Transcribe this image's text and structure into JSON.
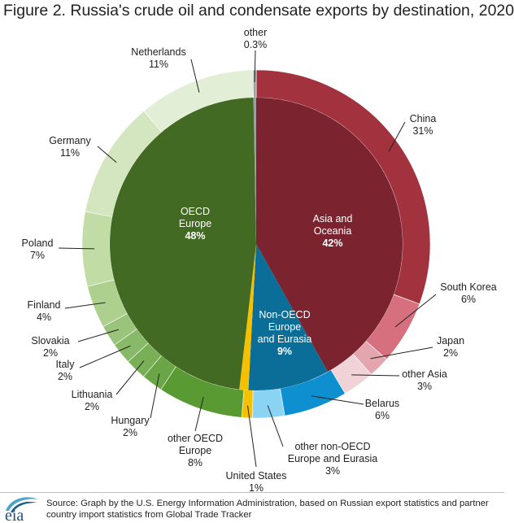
{
  "title": "Figure 2. Russia's crude oil and condensate exports by destination, 2020",
  "source": "Source: Graph by the U.S. Energy Information Administration, based on Russian export statistics and partner country import statistics from Global Trade Tracker",
  "logo_text": "eia",
  "colors": {
    "asia_inner": "#7b2430",
    "oecd_inner": "#436a23",
    "nonoecd_inner": "#0a6e98",
    "us": "#f5c000",
    "other": "#9e9e9e"
  },
  "chart_data": {
    "type": "pie",
    "subtype": "nested-donut",
    "title": "Figure 2. Russia's crude oil and condensate exports by destination, 2020",
    "unit": "percent of exports",
    "inner": [
      {
        "name": "Asia and Oceania",
        "lines": [
          "Asia and",
          "Oceania"
        ],
        "pct_label": "42%",
        "value": 42,
        "color": "#7b2430"
      },
      {
        "name": "Non-OECD Europe and Eurasia",
        "lines": [
          "Non-OECD",
          "Europe",
          "and Eurasia"
        ],
        "pct_label": "9%",
        "value": 9,
        "color": "#0a6e98"
      },
      {
        "name": "United States",
        "lines": [],
        "pct_label": "",
        "value": 1,
        "color": "#f5c000"
      },
      {
        "name": "OECD Europe",
        "lines": [
          "OECD",
          "Europe"
        ],
        "pct_label": "48%",
        "value": 48,
        "color": "#436a23"
      },
      {
        "name": "other",
        "lines": [],
        "pct_label": "",
        "value": 0.3,
        "color": "#9e9e9e"
      }
    ],
    "outer": [
      {
        "name": "China",
        "lines": [
          "China"
        ],
        "pct_label": "31%",
        "value": 31,
        "color": "#a3323f"
      },
      {
        "name": "South Korea",
        "lines": [
          "South Korea"
        ],
        "pct_label": "6%",
        "value": 6,
        "color": "#d6707e"
      },
      {
        "name": "Japan",
        "lines": [
          "Japan"
        ],
        "pct_label": "2%",
        "value": 2,
        "color": "#e3a6ae"
      },
      {
        "name": "other Asia",
        "lines": [
          "other Asia"
        ],
        "pct_label": "3%",
        "value": 3,
        "color": "#f0d3d7"
      },
      {
        "name": "Belarus",
        "lines": [
          "Belarus"
        ],
        "pct_label": "6%",
        "value": 6,
        "color": "#0d8fd0"
      },
      {
        "name": "other non-OECD Europe and Eurasia",
        "lines": [
          "other non-OECD",
          "Europe and Eurasia"
        ],
        "pct_label": "3%",
        "value": 3,
        "color": "#8ad3f3"
      },
      {
        "name": "United States",
        "lines": [
          "United States"
        ],
        "pct_label": "1%",
        "value": 1,
        "color": "#f5c000"
      },
      {
        "name": "other OECD Europe",
        "lines": [
          "other OECD",
          "Europe"
        ],
        "pct_label": "8%",
        "value": 8,
        "color": "#5a9a32"
      },
      {
        "name": "Hungary",
        "lines": [
          "Hungary"
        ],
        "pct_label": "2%",
        "value": 2,
        "color": "#6aa645"
      },
      {
        "name": "Lithuania",
        "lines": [
          "Lithuania"
        ],
        "pct_label": "2%",
        "value": 2,
        "color": "#79b055"
      },
      {
        "name": "Italy",
        "lines": [
          "Italy"
        ],
        "pct_label": "2%",
        "value": 2,
        "color": "#88b968"
      },
      {
        "name": "Slovakia",
        "lines": [
          "Slovakia"
        ],
        "pct_label": "2%",
        "value": 2,
        "color": "#9ac47c"
      },
      {
        "name": "Finland",
        "lines": [
          "Finland"
        ],
        "pct_label": "4%",
        "value": 4,
        "color": "#aed08f"
      },
      {
        "name": "Poland",
        "lines": [
          "Poland"
        ],
        "pct_label": "7%",
        "value": 7,
        "color": "#c2dca6"
      },
      {
        "name": "Germany",
        "lines": [
          "Germany"
        ],
        "pct_label": "11%",
        "value": 11,
        "color": "#d3e6bf"
      },
      {
        "name": "Netherlands",
        "lines": [
          "Netherlands"
        ],
        "pct_label": "11%",
        "value": 11,
        "color": "#e2eed5"
      },
      {
        "name": "other",
        "lines": [
          "other"
        ],
        "pct_label": "0.3%",
        "value": 0.3,
        "color": "#9e9e9e"
      }
    ]
  }
}
